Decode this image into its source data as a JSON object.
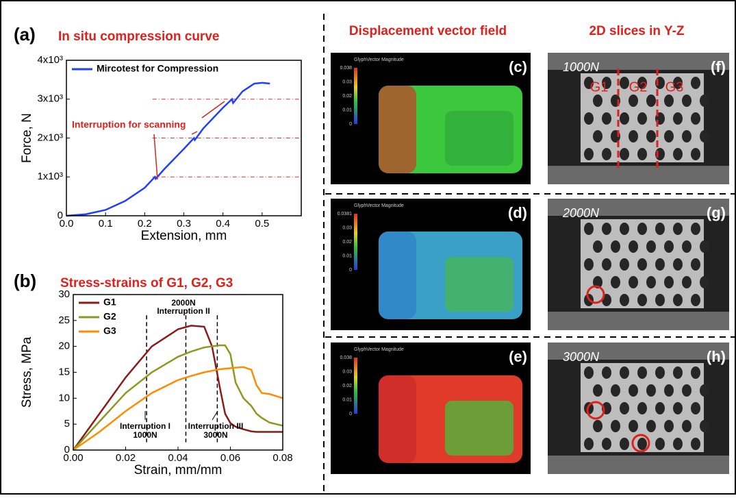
{
  "chart_data": [
    {
      "type": "line",
      "panel_label": "(a)",
      "title": "In situ compression curve",
      "xlabel": "Extension, mm",
      "ylabel": "Force, N",
      "xlim": [
        0,
        0.6
      ],
      "ylim": [
        0,
        4000
      ],
      "xticks": [
        {
          "value": 0,
          "label": "0.0"
        },
        0.1,
        0.2,
        0.3,
        0.4,
        0.5
      ],
      "yticks": [
        0,
        {
          "value": 1000,
          "label": "1x10³"
        },
        {
          "value": 2000,
          "label": "2x10³"
        },
        {
          "value": 3000,
          "label": "3x10³"
        },
        {
          "value": 4000,
          "label": "4x10³"
        }
      ],
      "x": [
        0,
        0.05,
        0.1,
        0.15,
        0.2,
        0.226,
        0.228,
        0.25,
        0.3,
        0.326,
        0.328,
        0.35,
        0.4,
        0.423,
        0.426,
        0.45,
        0.48,
        0.5,
        0.52
      ],
      "series": [
        {
          "name": "Mircotest for Compression",
          "color": "#1f3fff",
          "values": [
            0,
            40,
            150,
            380,
            720,
            1000,
            950,
            1200,
            1720,
            2000,
            1950,
            2250,
            2780,
            3000,
            2900,
            3200,
            3400,
            3420,
            3400
          ]
        }
      ],
      "hlines": [
        1000,
        2000,
        3000
      ],
      "hline_color": "#e0302a",
      "annotations": [
        "Interruption for scanning"
      ]
    },
    {
      "type": "line",
      "panel_label": "(b)",
      "title": "Stress-strains of G1, G2, G3",
      "xlabel": "Strain, mm/mm",
      "ylabel": "Stress, MPa",
      "xlim": [
        0,
        0.08
      ],
      "ylim": [
        0,
        30
      ],
      "xticks": [
        {
          "value": 0,
          "label": "0.00"
        },
        {
          "value": 0.02,
          "label": "0.02"
        },
        {
          "value": 0.04,
          "label": "0.04"
        },
        {
          "value": 0.06,
          "label": "0.06"
        },
        {
          "value": 0.08,
          "label": "0.08"
        }
      ],
      "yticks": [
        0,
        5,
        10,
        15,
        20,
        25,
        30
      ],
      "x": [
        0,
        0.01,
        0.02,
        0.03,
        0.04,
        0.045,
        0.05,
        0.053,
        0.056,
        0.058,
        0.06,
        0.062,
        0.065,
        0.068,
        0.07,
        0.072,
        0.075,
        0.08
      ],
      "series": [
        {
          "name": "G1",
          "color": "#8b1a1a",
          "values": [
            0,
            7,
            14,
            20,
            23.3,
            24,
            23.8,
            20,
            12,
            7,
            5.2,
            4.5,
            4,
            3.6,
            3.5,
            3.5,
            3.5,
            3.5
          ]
        },
        {
          "name": "G2",
          "color": "#8a9a1e",
          "values": [
            0,
            5.5,
            11,
            15,
            18,
            19,
            19.8,
            20,
            20.2,
            20.2,
            18.5,
            13,
            10,
            8.5,
            7,
            6.2,
            5.3,
            4.7
          ]
        },
        {
          "name": "G3",
          "color": "#ff8c00",
          "values": [
            0,
            3.5,
            7.5,
            11,
            13.5,
            14.3,
            15,
            15.3,
            15.6,
            15.7,
            15.8,
            15.9,
            16,
            15.5,
            12.5,
            11,
            10.8,
            10
          ]
        }
      ],
      "vlines": [
        0.028,
        0.043,
        0.055
      ],
      "annotations": [
        "2000N",
        "Interruption II",
        "Interruption I",
        "1000N",
        "Interruption III",
        "3000N"
      ]
    }
  ],
  "headings": [
    "Displacement vector field",
    "2D slices  in Y-Z"
  ],
  "vector_panels": [
    {
      "label": "(c)",
      "legend_title": "GlyphVector Magnitude",
      "scale": [
        "0.038",
        "0.03",
        "0.02",
        "0.01",
        "0"
      ]
    },
    {
      "label": "(d)",
      "legend_title": "GlyphVector Magnitude",
      "scale": [
        "0.0381",
        "0.03",
        "0.02",
        "0.01",
        "0"
      ]
    },
    {
      "label": "(e)",
      "legend_title": "GlyphVector Magnitude",
      "scale": [
        "0.038",
        "0.03",
        "0.02",
        "0.01",
        "0"
      ]
    }
  ],
  "slice_panels": [
    {
      "label": "(f)",
      "load": "1000N"
    },
    {
      "label": "(g)",
      "load": "2000N"
    },
    {
      "label": "(h)",
      "load": "3000N"
    }
  ],
  "groups": [
    "G1",
    "G2",
    "G3"
  ]
}
